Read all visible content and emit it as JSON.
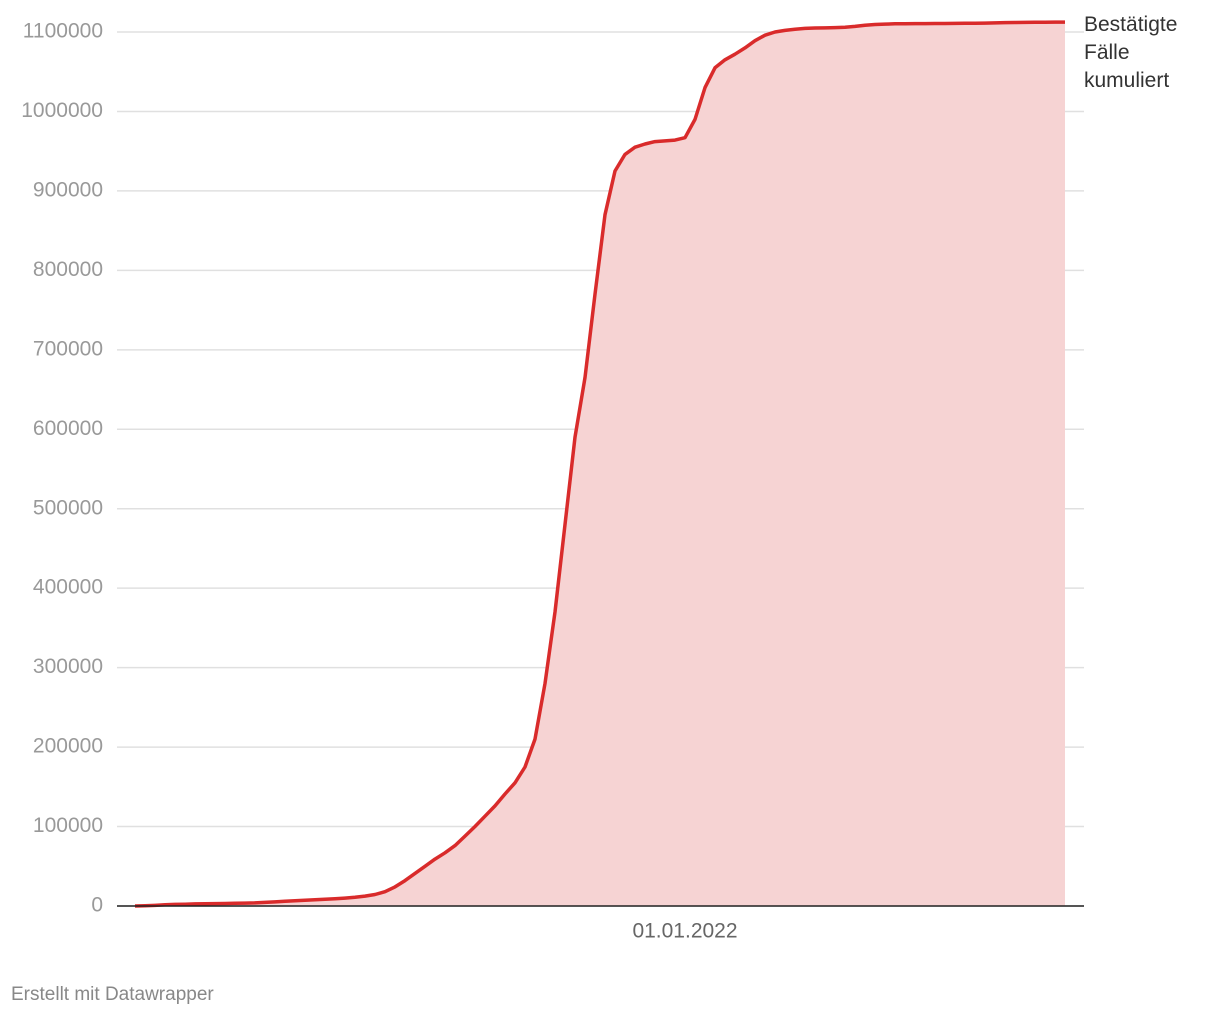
{
  "chart_data": {
    "type": "area",
    "credit": "Erstellt mit Datawrapper",
    "categories": [
      null,
      null,
      null,
      null,
      null,
      null,
      null,
      null,
      null,
      null,
      null,
      null,
      null,
      null,
      null,
      null,
      null,
      null,
      null,
      null,
      null,
      null,
      null,
      null,
      null,
      null,
      null,
      null,
      null,
      null,
      null,
      null,
      null,
      null,
      null,
      null,
      null,
      null,
      null,
      null,
      null,
      null,
      null,
      null,
      null,
      null,
      null,
      null,
      null,
      null,
      null,
      null,
      null,
      null,
      null,
      "01.01.2022",
      null,
      null,
      null,
      null,
      null,
      null,
      null,
      null,
      null,
      null,
      null,
      null,
      null,
      null,
      null,
      null,
      null,
      null,
      null,
      null,
      null,
      null,
      null,
      null,
      null,
      null,
      null,
      null,
      null,
      null,
      null,
      null,
      null,
      null,
      null,
      null,
      null,
      null
    ],
    "series": [
      {
        "name": "Bestätigte Fälle kumuliert",
        "color": "#d92b2b",
        "fill": "#f6d3d3",
        "values": [
          0,
          300,
          800,
          1500,
          2000,
          2300,
          2600,
          2800,
          3000,
          3200,
          3400,
          3600,
          3900,
          4500,
          5200,
          6000,
          6700,
          7200,
          7800,
          8400,
          9100,
          9900,
          11000,
          12500,
          14500,
          18000,
          24000,
          32000,
          41000,
          50000,
          59000,
          67000,
          76000,
          88000,
          100000,
          113000,
          126000,
          141000,
          155000,
          175000,
          210000,
          280000,
          370000,
          480000,
          590000,
          665000,
          770000,
          870000,
          925000,
          946000,
          955000,
          959000,
          962000,
          963000,
          964000,
          967000,
          990000,
          1030000,
          1055000,
          1065000,
          1072000,
          1080000,
          1089000,
          1096000,
          1100000,
          1102000,
          1103500,
          1104500,
          1105000,
          1105200,
          1105500,
          1106000,
          1107000,
          1108500,
          1109500,
          1110000,
          1110300,
          1110500,
          1110600,
          1110600,
          1110700,
          1110700,
          1110800,
          1110900,
          1111000,
          1111200,
          1111500,
          1111800,
          1112000,
          1112100,
          1112200,
          1112300,
          1112400,
          1112500
        ]
      }
    ],
    "ylim": [
      0,
      1100000
    ],
    "yticks": [
      0,
      100000,
      200000,
      300000,
      400000,
      500000,
      600000,
      700000,
      800000,
      900000,
      1000000,
      1100000
    ],
    "grid": true
  }
}
